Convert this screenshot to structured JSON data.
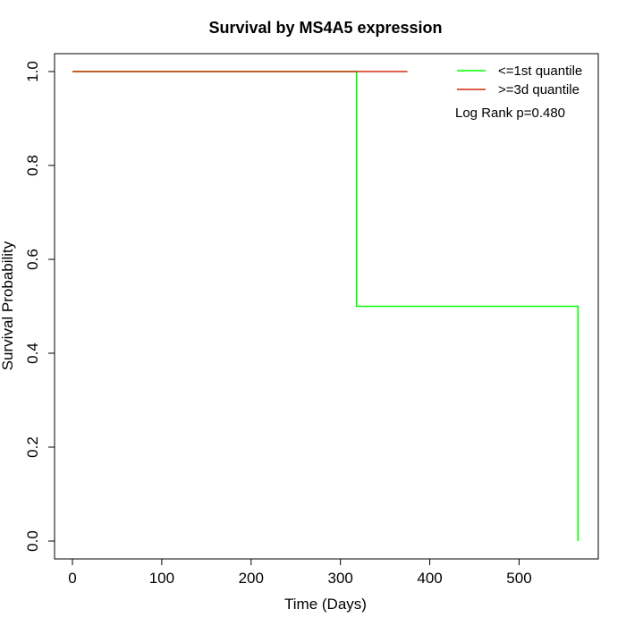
{
  "chart_data": {
    "type": "line",
    "title": "Survival by MS4A5 expression",
    "xlabel": "Time (Days)",
    "ylabel": "Survival Probability",
    "xlim": [
      0,
      567
    ],
    "ylim": [
      0,
      1
    ],
    "x_ticks": [
      0,
      100,
      200,
      300,
      400,
      500
    ],
    "y_ticks": [
      0.0,
      0.2,
      0.4,
      0.6,
      0.8,
      1.0
    ],
    "x_tick_labels": [
      "0",
      "100",
      "200",
      "300",
      "400",
      "500"
    ],
    "y_tick_labels": [
      "0.0",
      "0.2",
      "0.4",
      "0.6",
      "0.8",
      "1.0"
    ],
    "grid": false,
    "legend_position": "top-right",
    "step": true,
    "series": [
      {
        "name": "<=1st quantile",
        "color": "#00ff00",
        "x": [
          0,
          318,
          318,
          566,
          566
        ],
        "y": [
          1.0,
          1.0,
          0.5,
          0.5,
          0.0
        ]
      },
      {
        "name": ">=3d quantile",
        "color": "#d62a0f",
        "x": [
          0,
          375
        ],
        "y": [
          1.0,
          1.0
        ]
      }
    ],
    "annotations": [
      "Log Rank p=0.480"
    ]
  }
}
